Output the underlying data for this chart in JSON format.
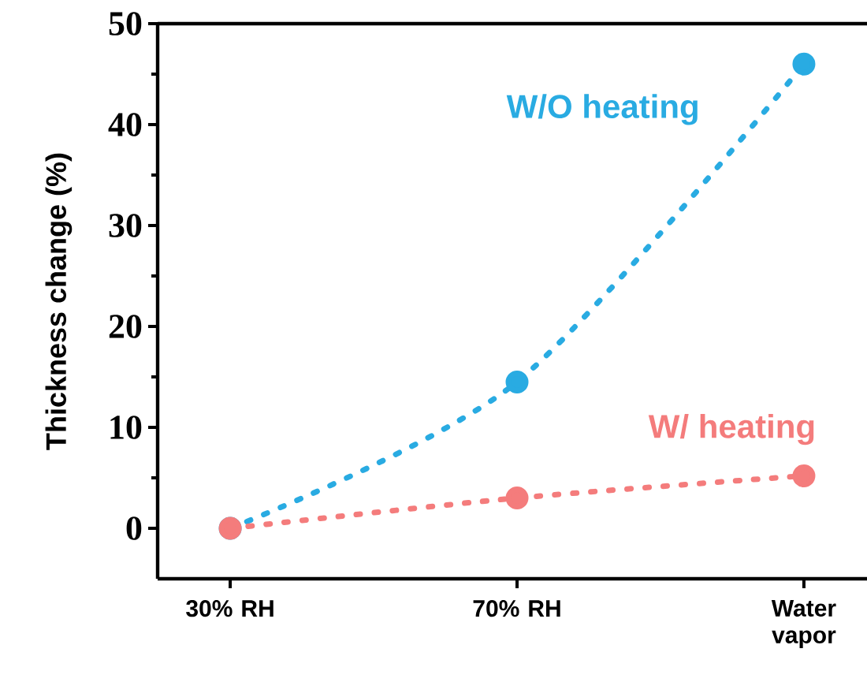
{
  "chart_data": {
    "type": "line",
    "ylabel": "Thickness change (%)",
    "categories": [
      "30% RH",
      "70% RH",
      "Water vapor"
    ],
    "series": [
      {
        "name": "W/O heating",
        "color": "#29abe2",
        "values": [
          0,
          14.5,
          46
        ]
      },
      {
        "name": "W/ heating",
        "color": "#f47c7c",
        "values": [
          0,
          3,
          5.2
        ]
      }
    ],
    "ylim": [
      -5,
      50
    ],
    "yticks": [
      0,
      10,
      20,
      30,
      40,
      50
    ],
    "grid": false,
    "marker": "circle",
    "line_style": "dotted"
  }
}
